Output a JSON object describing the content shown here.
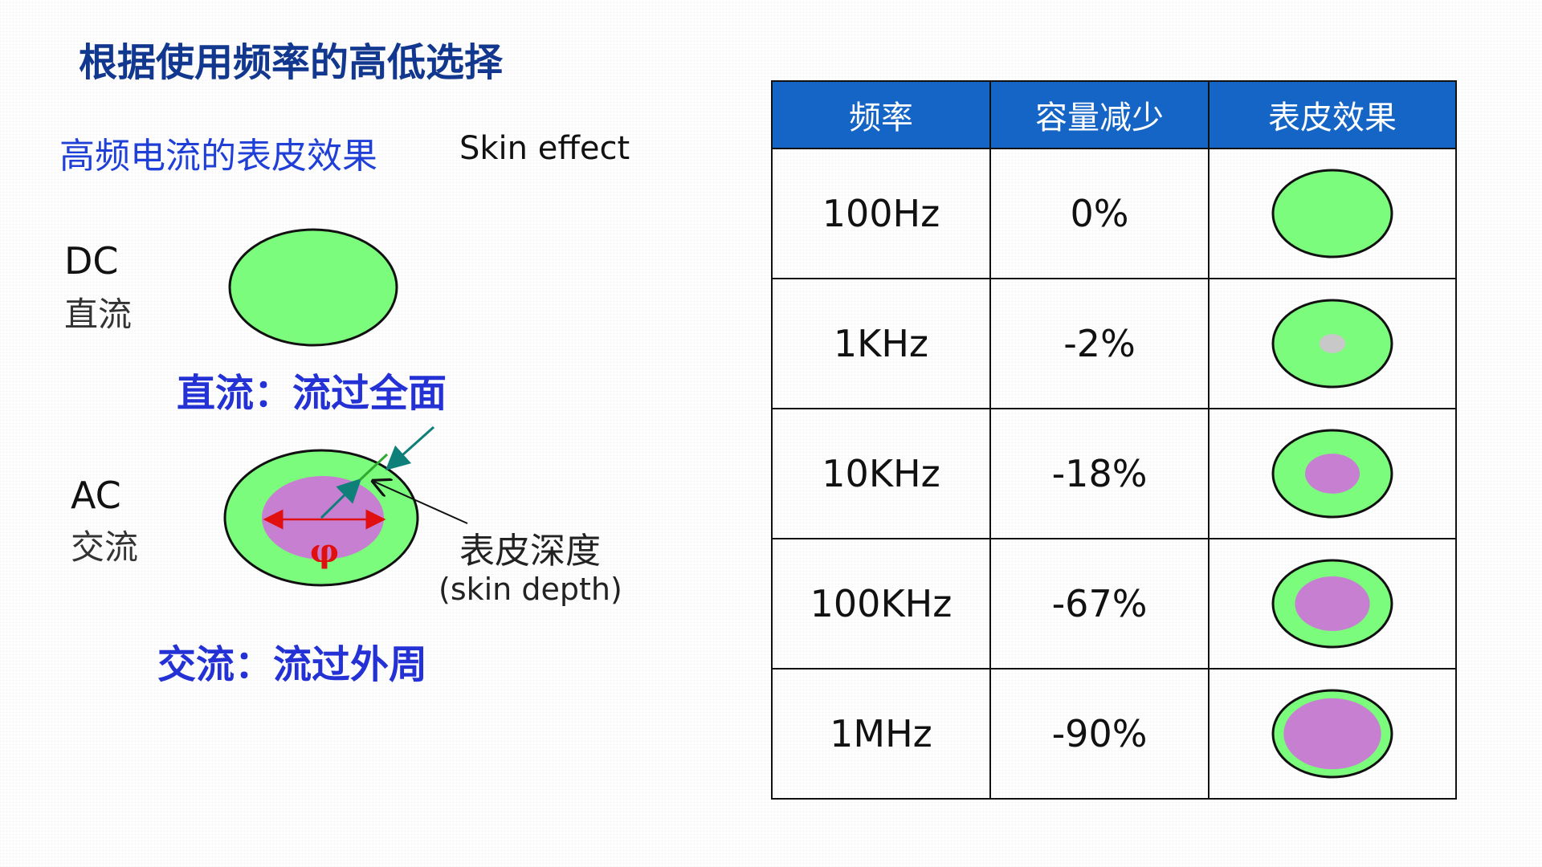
{
  "title": "根据使用频率的高低选择",
  "subtitle": {
    "cn": "高频电流的表皮效果",
    "en": "Skin effect"
  },
  "dc": {
    "label_en": "DC",
    "label_cn": "直流",
    "caption": "直流：流过全面"
  },
  "ac": {
    "label_en": "AC",
    "label_cn": "交流",
    "caption": "交流：流过外周",
    "phi": "φ"
  },
  "skin_depth": {
    "cn": "表皮深度",
    "en": "(skin depth)"
  },
  "colors": {
    "conductor": "#7cfc7c",
    "current_core": "#c77fd1",
    "header_bg": "#1565c6",
    "title": "#12378f",
    "caption": "#2431d4"
  },
  "table": {
    "headers": [
      "频率",
      "容量减少",
      "表皮效果"
    ],
    "rows": [
      {
        "freq": "100Hz",
        "reduction": "0%",
        "core_ratio": 0
      },
      {
        "freq": "1KHz",
        "reduction": "-2%",
        "core_ratio": 0.22
      },
      {
        "freq": "10KHz",
        "reduction": "-18%",
        "core_ratio": 0.46
      },
      {
        "freq": "100KHz",
        "reduction": "-67%",
        "core_ratio": 0.63
      },
      {
        "freq": "1MHz",
        "reduction": "-90%",
        "core_ratio": 0.82
      }
    ]
  }
}
